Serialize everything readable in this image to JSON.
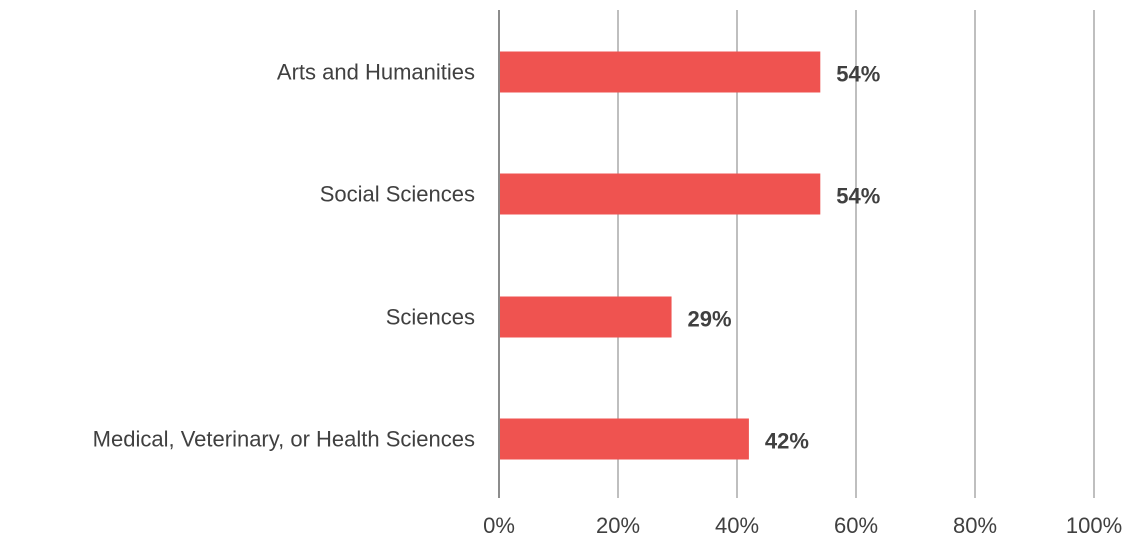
{
  "colors": {
    "bar": "#EF5350",
    "grid": "#BFBFBF",
    "axis": "#8C8C8C",
    "text": "#404040"
  },
  "chart_data": {
    "type": "bar",
    "orientation": "horizontal",
    "title": "",
    "xlabel": "",
    "ylabel": "",
    "categories": [
      "Arts and Humanities",
      "Social Sciences",
      "Sciences",
      "Medical, Veterinary, or Health Sciences"
    ],
    "values": [
      54,
      54,
      29,
      42
    ],
    "data_labels": [
      "54%",
      "54%",
      "29%",
      "42%"
    ],
    "xlim": [
      0,
      100
    ],
    "xticks": [
      0,
      20,
      40,
      60,
      80,
      100
    ],
    "xtick_labels": [
      "0%",
      "20%",
      "40%",
      "60%",
      "80%",
      "100%"
    ],
    "grid": "vertical",
    "legend": "none"
  }
}
